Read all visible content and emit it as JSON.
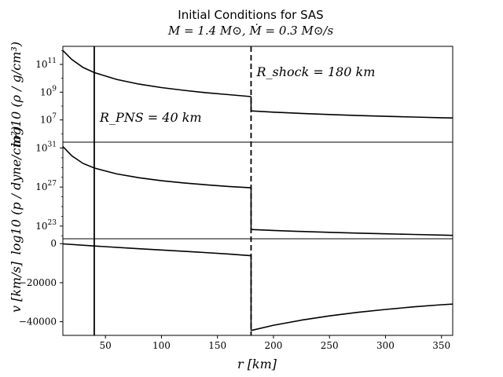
{
  "chart_data": {
    "type": "line",
    "title": "Initial Conditions for SAS",
    "subtitle": "M = 1.4 M⊙,  Ṁ = 0.3 M⊙/s",
    "xlabel": "r [km]",
    "xlim": [
      12,
      360
    ],
    "xticks": [
      50,
      100,
      150,
      200,
      250,
      300,
      350
    ],
    "grid": false,
    "legend": "none",
    "vlines": [
      {
        "x": 40,
        "style": "solid",
        "label": "R_PNS = 40 km"
      },
      {
        "x": 180,
        "style": "dashed",
        "label": "R_shock = 180 km"
      }
    ],
    "panels": [
      {
        "name": "density",
        "ylabel": "log10 (ρ / g/cm³)",
        "yscale": "log",
        "ylim_exp": [
          5.4,
          12.3
        ],
        "ytick_labels": [
          "10",
          "10",
          "10"
        ],
        "ytick_exponents": [
          "7",
          "9",
          "11"
        ],
        "ytick_exp_values": [
          7,
          9,
          11
        ],
        "series": [
          {
            "x": [
              12,
              20,
              30,
              40,
              60,
              80,
              100,
              120,
              140,
              160,
              180
            ],
            "log_values": [
              12.0,
              11.35,
              10.78,
              10.41,
              9.92,
              9.58,
              9.33,
              9.13,
              8.96,
              8.82,
              8.68
            ]
          },
          {
            "x": [
              180,
              200,
              225,
              250,
              275,
              300,
              325,
              350,
              360
            ],
            "log_values": [
              7.65,
              7.56,
              7.47,
              7.39,
              7.32,
              7.26,
              7.21,
              7.16,
              7.14
            ]
          }
        ]
      },
      {
        "name": "pressure",
        "ylabel": "log10 (p / dyne/cm²)",
        "yscale": "log",
        "ylim_exp": [
          21.7,
          31.6
        ],
        "ytick_labels": [
          "10",
          "10",
          "10"
        ],
        "ytick_exponents": [
          "23",
          "27",
          "31"
        ],
        "ytick_exp_values": [
          23,
          27,
          31
        ],
        "series": [
          {
            "x": [
              12,
              20,
              30,
              40,
              60,
              80,
              100,
              120,
              140,
              160,
              180
            ],
            "log_values": [
              31.15,
              30.2,
              29.42,
              28.95,
              28.35,
              27.95,
              27.65,
              27.42,
              27.23,
              27.06,
              26.92
            ]
          },
          {
            "x": [
              180,
              200,
              225,
              250,
              275,
              300,
              325,
              350,
              360
            ],
            "log_values": [
              22.65,
              22.55,
              22.45,
              22.36,
              22.28,
              22.21,
              22.14,
              22.08,
              22.05
            ]
          }
        ]
      },
      {
        "name": "velocity",
        "ylabel": "v [km/s]",
        "yscale": "linear",
        "ylim": [
          -47000,
          2500
        ],
        "yticks": [
          0,
          -20000,
          -40000
        ],
        "ytick_labels": [
          "0",
          "−20000",
          "−40000"
        ],
        "series": [
          {
            "x": [
              12,
              40,
              80,
              120,
              160,
              180
            ],
            "values": [
              -100,
              -1200,
              -2600,
              -3900,
              -5300,
              -6200
            ]
          },
          {
            "x": [
              180,
              200,
              225,
              250,
              275,
              300,
              325,
              350,
              360
            ],
            "values": [
              -44500,
              -41800,
              -39200,
              -37000,
              -35200,
              -33700,
              -32400,
              -31300,
              -31000
            ]
          }
        ]
      }
    ]
  }
}
